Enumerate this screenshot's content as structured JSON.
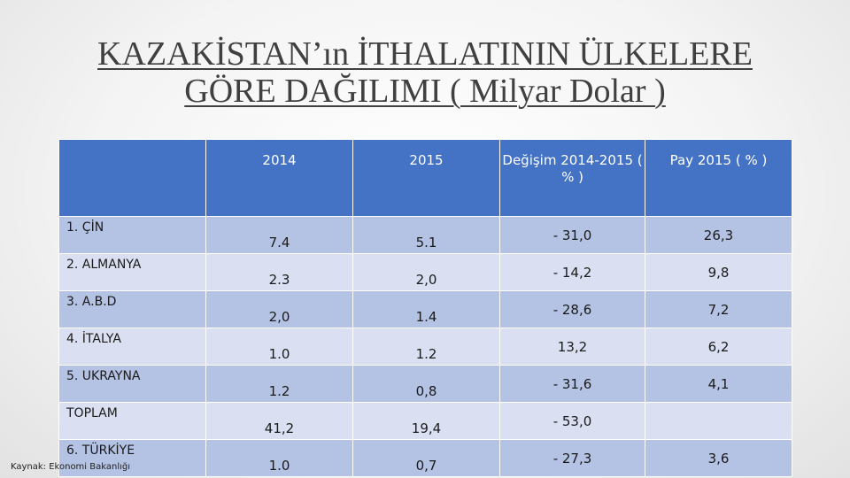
{
  "title": {
    "line1": "KAZAKİSTAN’ın İTHALATININ ÜLKELERE",
    "line2": "GÖRE DAĞILIMI ( Milyar Dolar )"
  },
  "table": {
    "headers": [
      "",
      "2014",
      "2015",
      "Değişim 2014-2015 ( % )",
      "Pay 2015 ( % )"
    ],
    "rows": [
      {
        "label": "1. ÇİN",
        "v2014": "7.4",
        "v2015": "5.1",
        "change": "- 31,0",
        "share": "26,3"
      },
      {
        "label": "2. ALMANYA",
        "v2014": "2.3",
        "v2015": "2,0",
        "change": "- 14,2",
        "share": "9,8"
      },
      {
        "label": "3. A.B.D",
        "v2014": "2,0",
        "v2015": "1.4",
        "change": "- 28,6",
        "share": "7,2"
      },
      {
        "label": "4. İTALYA",
        "v2014": "1.0",
        "v2015": "1.2",
        "change": "13,2",
        "share": "6,2"
      },
      {
        "label": "5. UKRAYNA",
        "v2014": "1.2",
        "v2015": "0,8",
        "change": "- 31,6",
        "share": "4,1"
      },
      {
        "label": "TOPLAM",
        "v2014": "41,2",
        "v2015": "19,4",
        "change": "- 53,0",
        "share": ""
      },
      {
        "label": "6. TÜRKİYE",
        "v2014": "1.0",
        "v2015": "0,7",
        "change": "- 27,3",
        "share": "3,6"
      }
    ]
  },
  "source": "Kaynak: Ekonomi Bakanlığı"
}
